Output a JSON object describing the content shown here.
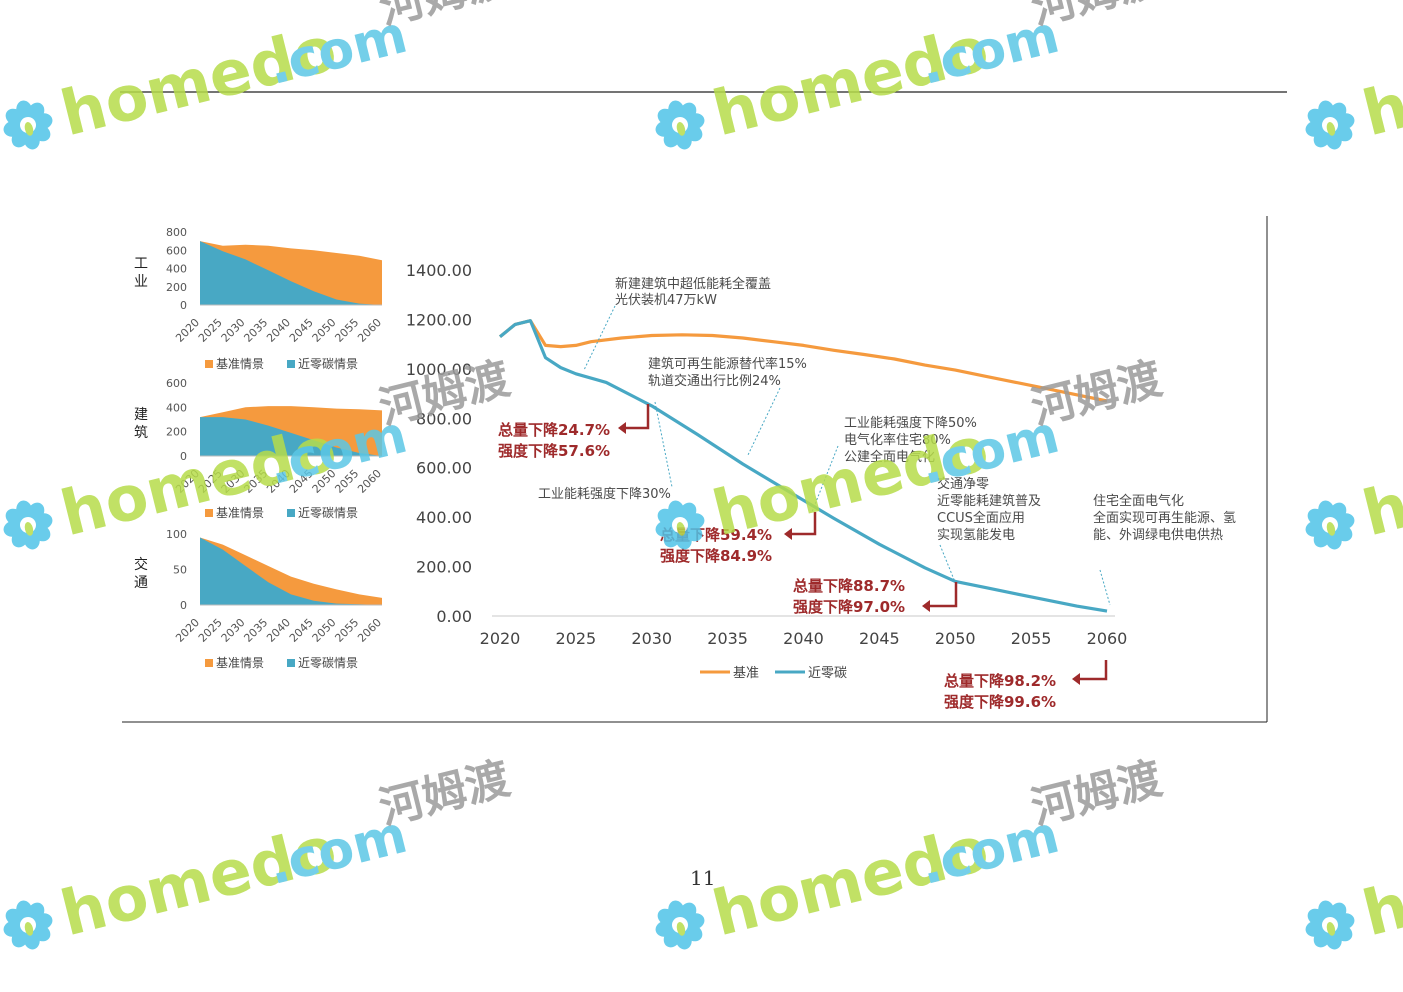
{
  "page_number": "11",
  "watermark": {
    "brand": "homedo",
    "domain": ".com",
    "chinese": "河姆渡",
    "colors": {
      "brand": "#b6dc4a",
      "domain": "#5bc7e6",
      "chinese": "#9a9a9a",
      "petal": "#4fc3e8",
      "center": "#b6dc4a"
    }
  },
  "colors": {
    "baseline": "#f59a3e",
    "near_zero": "#48a8c4",
    "highlight": "#9e2a2b",
    "annotation": "#4a4a4a"
  },
  "chart_data": [
    {
      "id": "industry",
      "type": "area",
      "row_label": "工业",
      "x": [
        2020,
        2025,
        2030,
        2035,
        2040,
        2045,
        2050,
        2055,
        2060
      ],
      "ylim": [
        0,
        800
      ],
      "yticks": [
        "800",
        "600",
        "400",
        "200",
        "0"
      ],
      "series": [
        {
          "name": "基准情景",
          "color": "#f59a3e",
          "values": [
            700,
            650,
            660,
            650,
            620,
            600,
            570,
            540,
            490
          ]
        },
        {
          "name": "近零碳情景",
          "color": "#48a8c4",
          "values": [
            700,
            590,
            500,
            380,
            260,
            150,
            60,
            15,
            0
          ]
        }
      ],
      "legend": [
        "基准情景",
        "近零碳情景"
      ]
    },
    {
      "id": "buildings",
      "type": "area",
      "row_label": "建筑",
      "x": [
        2020,
        2025,
        2030,
        2035,
        2040,
        2045,
        2050,
        2055,
        2060
      ],
      "ylim": [
        0,
        600
      ],
      "yticks": [
        "600",
        "400",
        "200",
        "0"
      ],
      "series": [
        {
          "name": "基准情景",
          "color": "#f59a3e",
          "values": [
            320,
            360,
            400,
            410,
            410,
            400,
            390,
            385,
            375
          ]
        },
        {
          "name": "近零碳情景",
          "color": "#48a8c4",
          "values": [
            320,
            320,
            300,
            250,
            190,
            130,
            70,
            25,
            0
          ]
        }
      ],
      "legend": [
        "基准情景",
        "近零碳情景"
      ]
    },
    {
      "id": "transport",
      "type": "area",
      "row_label": "交通",
      "x": [
        2020,
        2025,
        2030,
        2035,
        2040,
        2045,
        2050,
        2055,
        2060
      ],
      "ylim": [
        0,
        100
      ],
      "yticks": [
        "100",
        "50",
        "0"
      ],
      "series": [
        {
          "name": "基准情景",
          "color": "#f59a3e",
          "values": [
            95,
            85,
            70,
            55,
            40,
            30,
            22,
            15,
            10
          ]
        },
        {
          "name": "近零碳情景",
          "color": "#48a8c4",
          "values": [
            95,
            78,
            55,
            32,
            15,
            6,
            2,
            1,
            0
          ]
        }
      ],
      "legend": [
        "基准情景",
        "近零碳情景"
      ]
    },
    {
      "id": "main",
      "type": "line",
      "xlim": [
        2020,
        2060
      ],
      "ylim": [
        0,
        1400
      ],
      "xticks": [
        "2020",
        "2025",
        "2030",
        "2035",
        "2040",
        "2045",
        "2050",
        "2055",
        "2060"
      ],
      "yticks": [
        "1400.00",
        "1200.00",
        "1000.00",
        "800.00",
        "600.00",
        "400.00",
        "200.00",
        "0.00"
      ],
      "series": [
        {
          "name": "基准",
          "color": "#f59a3e",
          "points": [
            [
              2020,
              1130
            ],
            [
              2021,
              1180
            ],
            [
              2022,
              1195
            ],
            [
              2023,
              1095
            ],
            [
              2024,
              1090
            ],
            [
              2025,
              1095
            ],
            [
              2026,
              1110
            ],
            [
              2028,
              1125
            ],
            [
              2030,
              1135
            ],
            [
              2032,
              1138
            ],
            [
              2034,
              1135
            ],
            [
              2036,
              1125
            ],
            [
              2038,
              1110
            ],
            [
              2040,
              1095
            ],
            [
              2042,
              1075
            ],
            [
              2044,
              1058
            ],
            [
              2046,
              1040
            ],
            [
              2048,
              1015
            ],
            [
              2050,
              995
            ],
            [
              2052,
              970
            ],
            [
              2054,
              945
            ],
            [
              2056,
              920
            ],
            [
              2058,
              895
            ],
            [
              2060,
              870
            ]
          ]
        },
        {
          "name": "近零碳",
          "color": "#48a8c4",
          "points": [
            [
              2020,
              1130
            ],
            [
              2021,
              1180
            ],
            [
              2022,
              1195
            ],
            [
              2023,
              1045
            ],
            [
              2024,
              1005
            ],
            [
              2025,
              980
            ],
            [
              2027,
              945
            ],
            [
              2030,
              850
            ],
            [
              2033,
              735
            ],
            [
              2036,
              615
            ],
            [
              2039,
              505
            ],
            [
              2042,
              395
            ],
            [
              2045,
              290
            ],
            [
              2048,
              195
            ],
            [
              2050,
              140
            ],
            [
              2052,
              115
            ],
            [
              2054,
              90
            ],
            [
              2056,
              65
            ],
            [
              2058,
              40
            ],
            [
              2060,
              20
            ]
          ]
        }
      ],
      "legend": [
        "基准",
        "近零碳"
      ],
      "annotations": [
        "新建建筑中超低能耗全覆盖",
        "光伏装机47万kW",
        "建筑可再生能源替代率15%",
        "轨道交通出行比例24%",
        "工业能耗强度下降30%",
        "工业能耗强度下降50%",
        "电气化率住宅80%",
        "公建全面电气化",
        "交通净零",
        "近零能耗建筑普及",
        "CCUS全面应用",
        "实现氢能发电",
        "住宅全面电气化",
        "全面实现可再生能源、氢",
        "能、外调绿电供电供热"
      ],
      "highlights": [
        "总量下降24.7%",
        "强度下降57.6%",
        "总量下降59.4%",
        "强度下降84.9%",
        "总量下降88.7%",
        "强度下降97.0%",
        "总量下降98.2%",
        "强度下降99.6%"
      ]
    }
  ]
}
